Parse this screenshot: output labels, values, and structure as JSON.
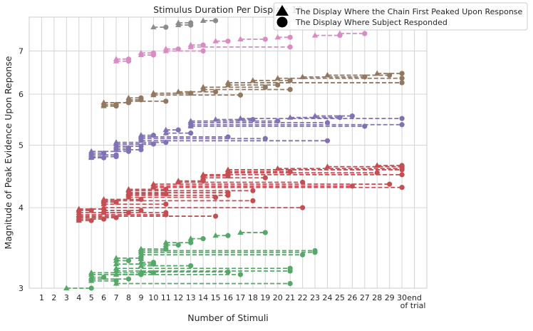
{
  "chart_data": {
    "type": "line",
    "title": "Stimulus Duration Per Display: 10",
    "xlabel": "Number of Stimuli",
    "ylabel": "Magnitude of Peak Evidence Upon Reponse",
    "x_ticks": [
      "1",
      "2",
      "3",
      "4",
      "5",
      "6",
      "7",
      "8",
      "9",
      "10",
      "11",
      "12",
      "13",
      "14",
      "15",
      "16",
      "17",
      "18",
      "19",
      "20",
      "21",
      "22",
      "23",
      "24",
      "25",
      "26",
      "27",
      "28",
      "29",
      "30",
      "end\nof trial"
    ],
    "xlim": [
      0,
      32
    ],
    "yscale": "log",
    "ylim": [
      3.0,
      7.9
    ],
    "y_ticks": [
      3,
      4,
      5,
      6,
      7
    ],
    "grid": true,
    "legend": {
      "position": "top-right",
      "entries": [
        {
          "marker": "triangle",
          "label": "The Display Where the Chain First Peaked Upon Response"
        },
        {
          "marker": "circle",
          "label": "The Display Where Subject Responded"
        }
      ]
    },
    "colors": {
      "green": "#55a868",
      "red": "#c44e52",
      "purple": "#8172b3",
      "brown": "#937860",
      "pink": "#da8bc3",
      "gray": "#8c8c8c"
    },
    "groups": [
      {
        "color": "green",
        "trials": [
          {
            "y": 3.0,
            "peak": 3,
            "resp": 5
          },
          {
            "y": 3.08,
            "peak": 5,
            "resp": 7
          },
          {
            "y": 3.1,
            "peak": 5,
            "resp": 8
          },
          {
            "y": 3.12,
            "peak": 5,
            "resp": 6
          },
          {
            "y": 3.15,
            "peak": 5,
            "resp": 9
          },
          {
            "y": 3.17,
            "peak": 5,
            "resp": 10
          },
          {
            "y": 3.05,
            "peak": 7,
            "resp": 21
          },
          {
            "y": 3.15,
            "peak": 7,
            "resp": 17
          },
          {
            "y": 3.19,
            "peak": 7,
            "resp": 21
          },
          {
            "y": 3.22,
            "peak": 7,
            "resp": 21
          },
          {
            "y": 3.27,
            "peak": 7,
            "resp": 10
          },
          {
            "y": 3.31,
            "peak": 7,
            "resp": 8
          },
          {
            "y": 3.34,
            "peak": 7,
            "resp": 9
          },
          {
            "y": 3.18,
            "peak": 9,
            "resp": 16
          },
          {
            "y": 3.25,
            "peak": 9,
            "resp": 13
          },
          {
            "y": 3.29,
            "peak": 9,
            "resp": 10
          },
          {
            "y": 3.33,
            "peak": 9,
            "resp": 9
          },
          {
            "y": 3.38,
            "peak": 9,
            "resp": 22
          },
          {
            "y": 3.41,
            "peak": 9,
            "resp": 23
          },
          {
            "y": 3.43,
            "peak": 9,
            "resp": 23
          },
          {
            "y": 3.45,
            "peak": 9,
            "resp": 11
          },
          {
            "y": 3.5,
            "peak": 11,
            "resp": 12
          },
          {
            "y": 3.53,
            "peak": 11,
            "resp": 13
          },
          {
            "y": 3.58,
            "peak": 13,
            "resp": 14
          },
          {
            "y": 3.62,
            "peak": 15,
            "resp": 16
          },
          {
            "y": 3.66,
            "peak": 17,
            "resp": 19
          }
        ]
      },
      {
        "color": "red",
        "trials": [
          {
            "y": 3.82,
            "peak": 4,
            "resp": 5
          },
          {
            "y": 3.84,
            "peak": 4,
            "resp": 6
          },
          {
            "y": 3.86,
            "peak": 4,
            "resp": 7
          },
          {
            "y": 3.88,
            "peak": 4,
            "resp": 15
          },
          {
            "y": 3.9,
            "peak": 4,
            "resp": 11
          },
          {
            "y": 3.93,
            "peak": 4,
            "resp": 8
          },
          {
            "y": 3.96,
            "peak": 4,
            "resp": 5
          },
          {
            "y": 3.98,
            "peak": 4,
            "resp": 6
          },
          {
            "y": 3.93,
            "peak": 6,
            "resp": 11
          },
          {
            "y": 3.96,
            "peak": 6,
            "resp": 9
          },
          {
            "y": 4.0,
            "peak": 6,
            "resp": 22
          },
          {
            "y": 4.05,
            "peak": 6,
            "resp": 11
          },
          {
            "y": 4.08,
            "peak": 6,
            "resp": 7
          },
          {
            "y": 4.1,
            "peak": 6,
            "resp": 18
          },
          {
            "y": 4.12,
            "peak": 6,
            "resp": 9
          },
          {
            "y": 4.15,
            "peak": 8,
            "resp": 15
          },
          {
            "y": 4.18,
            "peak": 8,
            "resp": 16
          },
          {
            "y": 4.2,
            "peak": 8,
            "resp": 11
          },
          {
            "y": 4.22,
            "peak": 8,
            "resp": 16
          },
          {
            "y": 4.25,
            "peak": 8,
            "resp": 18
          },
          {
            "y": 4.27,
            "peak": 8,
            "resp": 11
          },
          {
            "y": 4.3,
            "peak": 10,
            "resp": 30
          },
          {
            "y": 4.32,
            "peak": 10,
            "resp": 26
          },
          {
            "y": 4.35,
            "peak": 10,
            "resp": 29
          },
          {
            "y": 4.38,
            "peak": 12,
            "resp": 22
          },
          {
            "y": 4.4,
            "peak": 12,
            "resp": 14
          },
          {
            "y": 4.45,
            "peak": 14,
            "resp": 19
          },
          {
            "y": 4.48,
            "peak": 14,
            "resp": 16
          },
          {
            "y": 4.5,
            "peak": 14,
            "resp": 30
          },
          {
            "y": 4.53,
            "peak": 16,
            "resp": 28
          },
          {
            "y": 4.55,
            "peak": 16,
            "resp": 21
          },
          {
            "y": 4.58,
            "peak": 16,
            "resp": 30
          },
          {
            "y": 4.6,
            "peak": 20,
            "resp": 30
          },
          {
            "y": 4.63,
            "peak": 24,
            "resp": 30
          },
          {
            "y": 4.65,
            "peak": 28,
            "resp": 30
          }
        ]
      },
      {
        "color": "purple",
        "trials": [
          {
            "y": 4.78,
            "peak": 5,
            "resp": 6
          },
          {
            "y": 4.8,
            "peak": 5,
            "resp": 7
          },
          {
            "y": 4.83,
            "peak": 5,
            "resp": 7
          },
          {
            "y": 4.86,
            "peak": 5,
            "resp": 6
          },
          {
            "y": 4.89,
            "peak": 5,
            "resp": 8
          },
          {
            "y": 4.92,
            "peak": 7,
            "resp": 9
          },
          {
            "y": 4.95,
            "peak": 7,
            "resp": 8
          },
          {
            "y": 4.98,
            "peak": 7,
            "resp": 9
          },
          {
            "y": 5.02,
            "peak": 7,
            "resp": 10
          },
          {
            "y": 5.05,
            "peak": 7,
            "resp": 11
          },
          {
            "y": 5.08,
            "peak": 9,
            "resp": 24
          },
          {
            "y": 5.12,
            "peak": 9,
            "resp": 19
          },
          {
            "y": 5.15,
            "peak": 9,
            "resp": 16
          },
          {
            "y": 5.18,
            "peak": 9,
            "resp": 10
          },
          {
            "y": 5.22,
            "peak": 11,
            "resp": 13
          },
          {
            "y": 5.28,
            "peak": 11,
            "resp": 12
          },
          {
            "y": 5.35,
            "peak": 13,
            "resp": 27
          },
          {
            "y": 5.38,
            "peak": 13,
            "resp": 30
          },
          {
            "y": 5.42,
            "peak": 13,
            "resp": 24
          },
          {
            "y": 5.45,
            "peak": 13,
            "resp": 20
          },
          {
            "y": 5.48,
            "peak": 15,
            "resp": 18
          },
          {
            "y": 5.5,
            "peak": 17,
            "resp": 30
          },
          {
            "y": 5.52,
            "peak": 21,
            "resp": 25
          },
          {
            "y": 5.55,
            "peak": 23,
            "resp": 26
          }
        ]
      },
      {
        "color": "brown",
        "trials": [
          {
            "y": 5.75,
            "peak": 6,
            "resp": 7
          },
          {
            "y": 5.78,
            "peak": 6,
            "resp": 7
          },
          {
            "y": 5.82,
            "peak": 6,
            "resp": 8
          },
          {
            "y": 5.85,
            "peak": 8,
            "resp": 11
          },
          {
            "y": 5.88,
            "peak": 8,
            "resp": 9
          },
          {
            "y": 5.92,
            "peak": 8,
            "resp": 9
          },
          {
            "y": 5.98,
            "peak": 10,
            "resp": 17
          },
          {
            "y": 6.02,
            "peak": 10,
            "resp": 13
          },
          {
            "y": 6.05,
            "peak": 12,
            "resp": 15
          },
          {
            "y": 6.1,
            "peak": 14,
            "resp": 21
          },
          {
            "y": 6.15,
            "peak": 14,
            "resp": 19
          },
          {
            "y": 6.2,
            "peak": 16,
            "resp": 20
          },
          {
            "y": 6.25,
            "peak": 16,
            "resp": 30
          },
          {
            "y": 6.3,
            "peak": 18,
            "resp": 21
          },
          {
            "y": 6.35,
            "peak": 20,
            "resp": 30
          },
          {
            "y": 6.38,
            "peak": 22,
            "resp": 27
          },
          {
            "y": 6.42,
            "peak": 24,
            "resp": 29
          },
          {
            "y": 6.46,
            "peak": 28,
            "resp": 30
          }
        ]
      },
      {
        "color": "pink",
        "trials": [
          {
            "y": 6.75,
            "peak": 7,
            "resp": 8
          },
          {
            "y": 6.8,
            "peak": 7,
            "resp": 8
          },
          {
            "y": 6.9,
            "peak": 9,
            "resp": 10
          },
          {
            "y": 6.95,
            "peak": 9,
            "resp": 10
          },
          {
            "y": 7.0,
            "peak": 11,
            "resp": 14
          },
          {
            "y": 7.05,
            "peak": 11,
            "resp": 12
          },
          {
            "y": 7.1,
            "peak": 13,
            "resp": 21
          },
          {
            "y": 7.15,
            "peak": 13,
            "resp": 14
          },
          {
            "y": 7.25,
            "peak": 15,
            "resp": 16
          },
          {
            "y": 7.3,
            "peak": 17,
            "resp": 19
          },
          {
            "y": 7.35,
            "peak": 20,
            "resp": 21
          },
          {
            "y": 7.4,
            "peak": 23,
            "resp": 25
          },
          {
            "y": 7.45,
            "peak": 25,
            "resp": 27
          }
        ]
      },
      {
        "color": "gray",
        "trials": [
          {
            "y": 7.62,
            "peak": 10,
            "resp": 11
          },
          {
            "y": 7.68,
            "peak": 12,
            "resp": 13
          },
          {
            "y": 7.74,
            "peak": 12,
            "resp": 13
          },
          {
            "y": 7.8,
            "peak": 14,
            "resp": 15
          }
        ]
      }
    ]
  }
}
